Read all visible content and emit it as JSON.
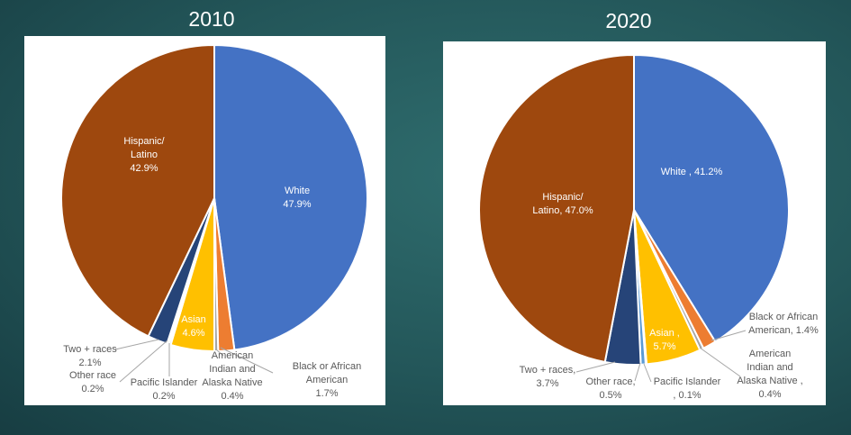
{
  "chart_data": [
    {
      "type": "pie",
      "title": "2010",
      "categories": [
        "White",
        "Black or African American",
        "American Indian and Alaska Native",
        "Asian",
        "Pacific Islander",
        "Other race",
        "Two + races",
        "Hispanic/ Latino"
      ],
      "values": [
        47.9,
        1.7,
        0.4,
        4.6,
        0.2,
        0.2,
        2.1,
        42.9
      ],
      "colors": [
        "#4472C4",
        "#ED7D31",
        "#A5A5A5",
        "#FFC000",
        "#5B9BD5",
        "#70AD47",
        "#264478",
        "#9E480E"
      ],
      "labels": [
        [
          "White",
          "47.9%"
        ],
        [
          "Black or African",
          "American",
          "1.7%"
        ],
        [
          "American",
          "Indian and",
          "Alaska Native",
          "0.4%"
        ],
        [
          "Asian",
          "4.6%"
        ],
        [
          "Pacific Islander",
          "0.2%"
        ],
        [
          "Other race",
          "0.2%"
        ],
        [
          "Two + races",
          "2.1%"
        ],
        [
          "Hispanic/",
          "Latino",
          "42.9%"
        ]
      ]
    },
    {
      "type": "pie",
      "title": "2020",
      "categories": [
        "White",
        "Black or African American",
        "American Indian and Alaska Native",
        "Asian",
        "Pacific Islander",
        "Other race",
        "Two + races",
        "Hispanic/ Latino"
      ],
      "values": [
        41.2,
        1.4,
        0.4,
        5.7,
        0.1,
        0.5,
        3.7,
        47.0
      ],
      "colors": [
        "#4472C4",
        "#ED7D31",
        "#A5A5A5",
        "#FFC000",
        "#70AD47",
        "#5B9BD5",
        "#264478",
        "#9E480E"
      ],
      "labels": [
        [
          "White , 41.2%"
        ],
        [
          "Black or African",
          "American, 1.4%"
        ],
        [
          "American",
          "Indian and",
          "Alaska Native ,",
          "0.4%"
        ],
        [
          "Asian ,",
          "5.7%"
        ],
        [
          "Pacific Islander",
          ", 0.1%"
        ],
        [
          "Other race,",
          "0.5%"
        ],
        [
          "Two + races,",
          "3.7%"
        ],
        [
          "Hispanic/",
          "Latino, 47.0%"
        ]
      ]
    }
  ]
}
